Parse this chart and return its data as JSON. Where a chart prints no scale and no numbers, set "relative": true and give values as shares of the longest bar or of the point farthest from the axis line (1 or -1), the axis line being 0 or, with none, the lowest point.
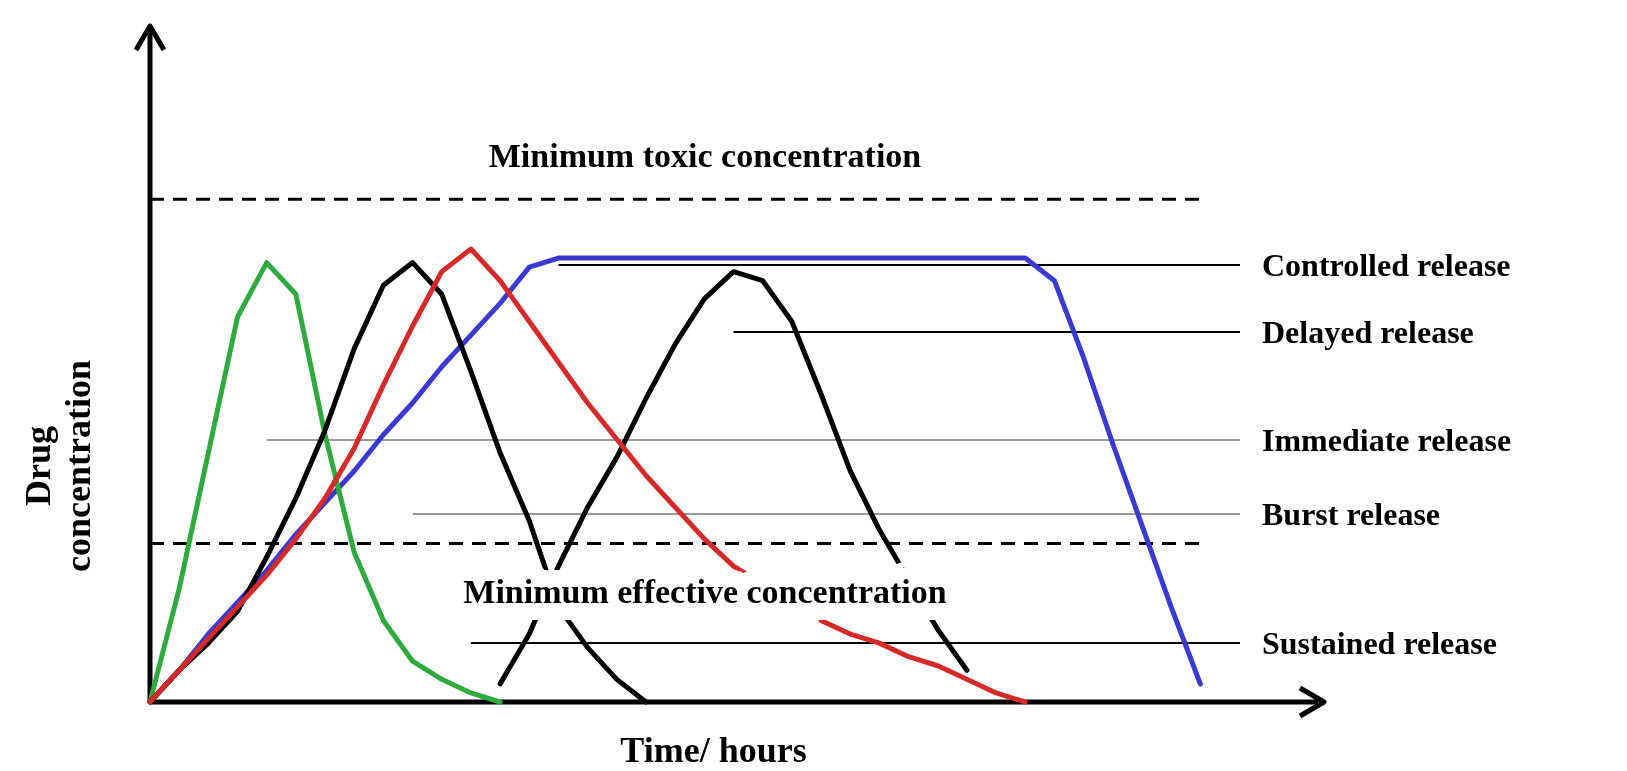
{
  "chart_data": {
    "type": "line",
    "relative": true,
    "xlabel": "Time/ hours",
    "ylabel": "Drug\nconcentration",
    "line_style": "solid",
    "categories": [
      null,
      null,
      null,
      null,
      null,
      null,
      null,
      null,
      null,
      null,
      null,
      null,
      null,
      null,
      null,
      null,
      null,
      null,
      null,
      null,
      null,
      null,
      null,
      null,
      null,
      null,
      null,
      null,
      null,
      null,
      null,
      null,
      null,
      null,
      null,
      null,
      null,
      null,
      null,
      null,
      null
    ],
    "series": [
      {
        "name": "Controlled release",
        "color": "#3a3ad0",
        "values": [
          0,
          0.07,
          0.15,
          0.22,
          0.29,
          0.37,
          0.44,
          0.51,
          0.59,
          0.66,
          0.74,
          0.81,
          0.88,
          0.96,
          0.98,
          0.98,
          0.98,
          0.98,
          0.98,
          0.98,
          0.98,
          0.98,
          0.98,
          0.98,
          0.98,
          0.98,
          0.98,
          0.98,
          0.98,
          0.98,
          0.98,
          0.93,
          0.76,
          0.57,
          0.39,
          0.21,
          0.04,
          null,
          null,
          null,
          null
        ]
      },
      {
        "name": "Delayed release",
        "color": "#000000",
        "values": [
          null,
          null,
          null,
          null,
          null,
          null,
          null,
          null,
          null,
          null,
          null,
          null,
          0.04,
          0.15,
          0.3,
          0.43,
          0.54,
          0.67,
          0.79,
          0.89,
          0.95,
          0.93,
          0.84,
          0.68,
          0.51,
          0.38,
          0.27,
          0.16,
          0.07,
          null,
          null,
          null,
          null,
          null,
          null,
          null,
          null,
          null,
          null,
          null,
          null
        ]
      },
      {
        "name": "Immediate release",
        "color": "#2eaa3e",
        "values": [
          0,
          0.25,
          0.55,
          0.85,
          0.97,
          0.9,
          0.59,
          0.33,
          0.18,
          0.09,
          0.05,
          0.02,
          0,
          null,
          null,
          null,
          null,
          null,
          null,
          null,
          null,
          null,
          null,
          null,
          null,
          null,
          null,
          null,
          null,
          null,
          null,
          null,
          null,
          null,
          null,
          null,
          null,
          null,
          null,
          null,
          null
        ]
      },
      {
        "name": "Burst release",
        "color": "#000000",
        "values": [
          0,
          0.07,
          0.13,
          0.2,
          0.32,
          0.45,
          0.6,
          0.78,
          0.92,
          0.97,
          0.9,
          0.73,
          0.55,
          0.4,
          0.21,
          0.12,
          0.05,
          0,
          null,
          null,
          null,
          null,
          null,
          null,
          null,
          null,
          null,
          null,
          null,
          null,
          null,
          null,
          null,
          null,
          null,
          null,
          null,
          null,
          null,
          null,
          null
        ]
      },
      {
        "name": "Sustained release",
        "color": "#d42a2a",
        "values": [
          0,
          0.07,
          0.14,
          0.21,
          0.28,
          0.36,
          0.45,
          0.56,
          0.7,
          0.83,
          0.95,
          1.0,
          0.93,
          0.84,
          0.75,
          0.66,
          0.58,
          0.5,
          0.43,
          0.36,
          0.3,
          0.26,
          null,
          0.18,
          0.15,
          0.13,
          0.1,
          0.08,
          0.05,
          0.02,
          0,
          null,
          null,
          null,
          null,
          null,
          null,
          null,
          null,
          null,
          null
        ]
      }
    ],
    "ref_lines": [
      {
        "axis": "y",
        "value": 1.11,
        "label": "Minimum toxic concentration",
        "color": "#000000",
        "line_style": "dashed"
      },
      {
        "axis": "y",
        "value": 0.35,
        "label": "Minimum effective concentration",
        "color": "#000000",
        "line_style": "dashed"
      }
    ]
  }
}
